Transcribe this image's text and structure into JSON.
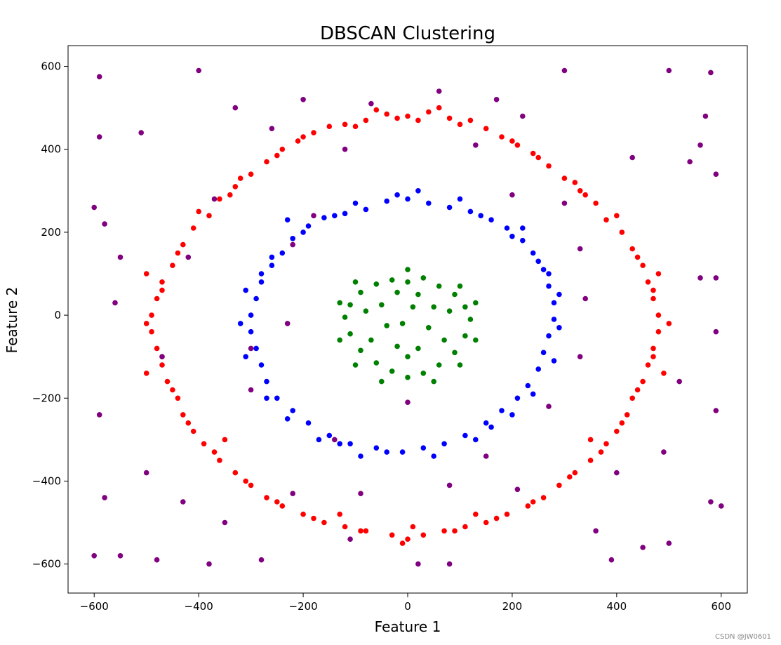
{
  "chart_data": {
    "type": "scatter",
    "title": "DBSCAN Clustering",
    "xlabel": "Feature 1",
    "ylabel": "Feature 2",
    "xlim": [
      -650,
      650
    ],
    "ylim": [
      -670,
      650
    ],
    "xticks": [
      -600,
      -400,
      -200,
      0,
      200,
      400,
      600
    ],
    "yticks": [
      -600,
      -400,
      -200,
      0,
      200,
      400,
      600
    ],
    "xtick_labels": [
      "−600",
      "−400",
      "−200",
      "0",
      "200",
      "400",
      "600"
    ],
    "ytick_labels": [
      "−600",
      "−400",
      "−200",
      "0",
      "200",
      "400",
      "600"
    ],
    "grid": false,
    "series": [
      {
        "color": "#ff0000",
        "points": [
          [
            0,
            480
          ],
          [
            40,
            490
          ],
          [
            -40,
            485
          ],
          [
            80,
            475
          ],
          [
            -80,
            470
          ],
          [
            120,
            470
          ],
          [
            -120,
            460
          ],
          [
            150,
            450
          ],
          [
            -150,
            455
          ],
          [
            180,
            430
          ],
          [
            -180,
            440
          ],
          [
            210,
            410
          ],
          [
            -210,
            420
          ],
          [
            240,
            390
          ],
          [
            -240,
            400
          ],
          [
            270,
            360
          ],
          [
            -270,
            370
          ],
          [
            300,
            330
          ],
          [
            -300,
            340
          ],
          [
            330,
            300
          ],
          [
            -330,
            310
          ],
          [
            360,
            270
          ],
          [
            -360,
            280
          ],
          [
            380,
            230
          ],
          [
            -380,
            240
          ],
          [
            410,
            200
          ],
          [
            -410,
            210
          ],
          [
            430,
            160
          ],
          [
            -430,
            170
          ],
          [
            450,
            120
          ],
          [
            -450,
            120
          ],
          [
            460,
            80
          ],
          [
            -470,
            80
          ],
          [
            470,
            40
          ],
          [
            -480,
            40
          ],
          [
            480,
            0
          ],
          [
            -490,
            0
          ],
          [
            480,
            -40
          ],
          [
            -490,
            -40
          ],
          [
            470,
            -80
          ],
          [
            -480,
            -80
          ],
          [
            460,
            -120
          ],
          [
            -470,
            -120
          ],
          [
            450,
            -160
          ],
          [
            -460,
            -160
          ],
          [
            430,
            -200
          ],
          [
            -440,
            -200
          ],
          [
            420,
            -240
          ],
          [
            -430,
            -240
          ],
          [
            400,
            -280
          ],
          [
            -410,
            -280
          ],
          [
            380,
            -310
          ],
          [
            -390,
            -310
          ],
          [
            350,
            -350
          ],
          [
            -360,
            -350
          ],
          [
            320,
            -380
          ],
          [
            -330,
            -380
          ],
          [
            290,
            -410
          ],
          [
            -300,
            -410
          ],
          [
            260,
            -440
          ],
          [
            -270,
            -440
          ],
          [
            230,
            -460
          ],
          [
            -240,
            -460
          ],
          [
            190,
            -480
          ],
          [
            -200,
            -480
          ],
          [
            150,
            -500
          ],
          [
            -160,
            -500
          ],
          [
            110,
            -510
          ],
          [
            -120,
            -510
          ],
          [
            70,
            -520
          ],
          [
            -80,
            -520
          ],
          [
            30,
            -530
          ],
          [
            -30,
            -530
          ],
          [
            0,
            -540
          ],
          [
            20,
            470
          ],
          [
            -20,
            475
          ],
          [
            100,
            460
          ],
          [
            -100,
            455
          ],
          [
            60,
            500
          ],
          [
            -60,
            495
          ],
          [
            200,
            420
          ],
          [
            -200,
            430
          ],
          [
            250,
            380
          ],
          [
            -250,
            385
          ],
          [
            320,
            320
          ],
          [
            -320,
            330
          ],
          [
            400,
            240
          ],
          [
            -400,
            250
          ],
          [
            440,
            140
          ],
          [
            -440,
            150
          ],
          [
            470,
            60
          ],
          [
            -470,
            60
          ],
          [
            500,
            -20
          ],
          [
            -500,
            -20
          ],
          [
            470,
            -100
          ],
          [
            -470,
            -100
          ],
          [
            440,
            -180
          ],
          [
            -450,
            -180
          ],
          [
            410,
            -260
          ],
          [
            -420,
            -260
          ],
          [
            370,
            -330
          ],
          [
            -370,
            -330
          ],
          [
            310,
            -390
          ],
          [
            -310,
            -400
          ],
          [
            240,
            -450
          ],
          [
            -250,
            -450
          ],
          [
            170,
            -490
          ],
          [
            -180,
            -490
          ],
          [
            90,
            -520
          ],
          [
            -90,
            -520
          ],
          [
            10,
            -510
          ],
          [
            -10,
            -550
          ],
          [
            130,
            -480
          ],
          [
            -130,
            -480
          ],
          [
            350,
            -300
          ],
          [
            -350,
            -300
          ],
          [
            340,
            290
          ],
          [
            -340,
            290
          ],
          [
            480,
            100
          ],
          [
            -500,
            100
          ],
          [
            490,
            -140
          ],
          [
            -500,
            -140
          ]
        ]
      },
      {
        "color": "#0000ff",
        "points": [
          [
            0,
            280
          ],
          [
            40,
            270
          ],
          [
            -40,
            275
          ],
          [
            80,
            260
          ],
          [
            -80,
            255
          ],
          [
            120,
            250
          ],
          [
            -120,
            245
          ],
          [
            160,
            230
          ],
          [
            -160,
            235
          ],
          [
            190,
            210
          ],
          [
            -190,
            215
          ],
          [
            220,
            180
          ],
          [
            -220,
            185
          ],
          [
            240,
            150
          ],
          [
            -240,
            150
          ],
          [
            260,
            110
          ],
          [
            -260,
            120
          ],
          [
            270,
            70
          ],
          [
            -280,
            80
          ],
          [
            280,
            30
          ],
          [
            -290,
            40
          ],
          [
            280,
            -10
          ],
          [
            -300,
            0
          ],
          [
            270,
            -50
          ],
          [
            -300,
            -40
          ],
          [
            260,
            -90
          ],
          [
            -290,
            -80
          ],
          [
            250,
            -130
          ],
          [
            -280,
            -120
          ],
          [
            230,
            -170
          ],
          [
            -270,
            -160
          ],
          [
            210,
            -200
          ],
          [
            -250,
            -200
          ],
          [
            180,
            -230
          ],
          [
            -220,
            -230
          ],
          [
            150,
            -260
          ],
          [
            -190,
            -260
          ],
          [
            110,
            -290
          ],
          [
            -150,
            -290
          ],
          [
            70,
            -310
          ],
          [
            -110,
            -310
          ],
          [
            30,
            -320
          ],
          [
            -60,
            -320
          ],
          [
            -10,
            -330
          ],
          [
            20,
            300
          ],
          [
            -20,
            290
          ],
          [
            100,
            280
          ],
          [
            -100,
            270
          ],
          [
            200,
            190
          ],
          [
            -200,
            200
          ],
          [
            250,
            130
          ],
          [
            -260,
            140
          ],
          [
            290,
            50
          ],
          [
            -310,
            60
          ],
          [
            290,
            -30
          ],
          [
            -320,
            -20
          ],
          [
            280,
            -110
          ],
          [
            -310,
            -100
          ],
          [
            240,
            -190
          ],
          [
            -270,
            -200
          ],
          [
            200,
            -240
          ],
          [
            -230,
            -250
          ],
          [
            130,
            -300
          ],
          [
            -170,
            -300
          ],
          [
            50,
            -340
          ],
          [
            -90,
            -340
          ],
          [
            -40,
            -330
          ],
          [
            160,
            -270
          ],
          [
            -130,
            -310
          ],
          [
            220,
            210
          ],
          [
            -230,
            230
          ],
          [
            270,
            100
          ],
          [
            -280,
            100
          ],
          [
            140,
            240
          ],
          [
            -140,
            240
          ]
        ]
      },
      {
        "color": "#008000",
        "points": [
          [
            0,
            80
          ],
          [
            30,
            90
          ],
          [
            -30,
            85
          ],
          [
            60,
            70
          ],
          [
            -60,
            75
          ],
          [
            90,
            50
          ],
          [
            -90,
            55
          ],
          [
            110,
            20
          ],
          [
            -110,
            25
          ],
          [
            120,
            -10
          ],
          [
            -120,
            -5
          ],
          [
            110,
            -50
          ],
          [
            -110,
            -45
          ],
          [
            90,
            -90
          ],
          [
            -90,
            -85
          ],
          [
            60,
            -120
          ],
          [
            -60,
            -115
          ],
          [
            30,
            -140
          ],
          [
            -30,
            -135
          ],
          [
            0,
            -150
          ],
          [
            20,
            50
          ],
          [
            -20,
            55
          ],
          [
            50,
            20
          ],
          [
            -50,
            25
          ],
          [
            40,
            -30
          ],
          [
            -40,
            -25
          ],
          [
            20,
            -80
          ],
          [
            -20,
            -75
          ],
          [
            70,
            -60
          ],
          [
            -70,
            -60
          ],
          [
            100,
            70
          ],
          [
            -100,
            80
          ],
          [
            130,
            30
          ],
          [
            -130,
            30
          ],
          [
            130,
            -60
          ],
          [
            -130,
            -60
          ],
          [
            100,
            -120
          ],
          [
            -100,
            -120
          ],
          [
            50,
            -160
          ],
          [
            -50,
            -160
          ],
          [
            0,
            110
          ],
          [
            0,
            -100
          ],
          [
            80,
            10
          ],
          [
            -80,
            10
          ],
          [
            10,
            20
          ],
          [
            -10,
            -20
          ]
        ]
      },
      {
        "color": "#800080",
        "points": [
          [
            -590,
            575
          ],
          [
            -400,
            590
          ],
          [
            -260,
            450
          ],
          [
            -590,
            430
          ],
          [
            -510,
            440
          ],
          [
            300,
            590
          ],
          [
            500,
            590
          ],
          [
            580,
            585
          ],
          [
            570,
            480
          ],
          [
            560,
            410
          ],
          [
            590,
            340
          ],
          [
            -600,
            260
          ],
          [
            -580,
            220
          ],
          [
            540,
            370
          ],
          [
            -550,
            140
          ],
          [
            -560,
            30
          ],
          [
            -590,
            -240
          ],
          [
            -580,
            -440
          ],
          [
            -600,
            -580
          ],
          [
            -550,
            -580
          ],
          [
            -480,
            -590
          ],
          [
            -380,
            -600
          ],
          [
            -280,
            -590
          ],
          [
            -110,
            -540
          ],
          [
            20,
            -600
          ],
          [
            80,
            -600
          ],
          [
            390,
            -590
          ],
          [
            450,
            -560
          ],
          [
            500,
            -550
          ],
          [
            580,
            -450
          ],
          [
            600,
            -460
          ],
          [
            590,
            -230
          ],
          [
            590,
            -40
          ],
          [
            560,
            90
          ],
          [
            590,
            90
          ],
          [
            -470,
            -100
          ],
          [
            -300,
            -180
          ],
          [
            -140,
            -300
          ],
          [
            0,
            -210
          ],
          [
            150,
            -340
          ],
          [
            270,
            -220
          ],
          [
            330,
            -100
          ],
          [
            340,
            40
          ],
          [
            330,
            160
          ],
          [
            300,
            270
          ],
          [
            200,
            290
          ],
          [
            -180,
            240
          ],
          [
            -220,
            170
          ],
          [
            -370,
            280
          ],
          [
            -420,
            140
          ],
          [
            -300,
            -80
          ],
          [
            -230,
            -20
          ],
          [
            -120,
            400
          ],
          [
            130,
            410
          ],
          [
            220,
            480
          ],
          [
            -330,
            500
          ],
          [
            -200,
            520
          ],
          [
            -70,
            510
          ],
          [
            60,
            540
          ],
          [
            170,
            520
          ],
          [
            430,
            380
          ],
          [
            -500,
            -380
          ],
          [
            -430,
            -450
          ],
          [
            -350,
            -500
          ],
          [
            -220,
            -430
          ],
          [
            -90,
            -430
          ],
          [
            80,
            -410
          ],
          [
            210,
            -420
          ],
          [
            360,
            -520
          ],
          [
            400,
            -380
          ],
          [
            490,
            -330
          ],
          [
            520,
            -160
          ]
        ]
      }
    ]
  },
  "watermark": "CSDN @JW0601"
}
